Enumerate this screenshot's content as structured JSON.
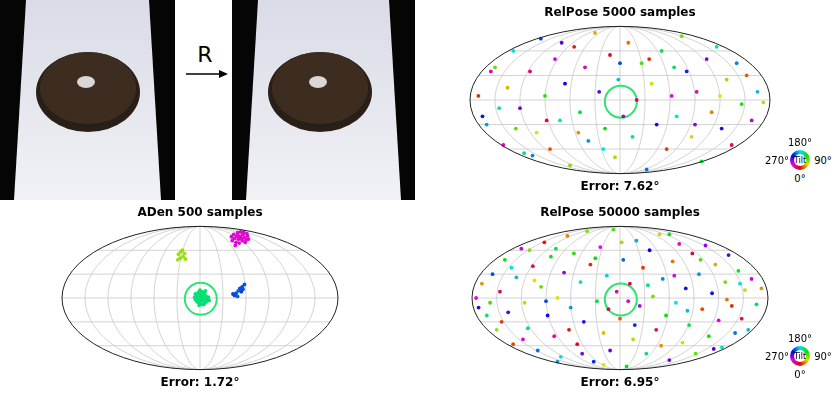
{
  "photo": {
    "arrow_label": "R"
  },
  "chart_data": [
    {
      "type": "scatter",
      "title": "ADen 500 samples",
      "xlabel": "Error: 1.72°",
      "xlim": [
        -180,
        180
      ],
      "ylim": [
        -90,
        90
      ],
      "tick_labels": false,
      "grid": true,
      "ground_truth": {
        "x": 1,
        "y": -1
      },
      "points": [
        [
          -5,
          2,
          150
        ],
        [
          -3,
          5,
          152
        ],
        [
          0,
          6,
          148
        ],
        [
          2,
          8,
          155
        ],
        [
          4,
          7,
          150
        ],
        [
          6,
          4,
          146
        ],
        [
          8,
          2,
          152
        ],
        [
          10,
          -1,
          150
        ],
        [
          9,
          -4,
          148
        ],
        [
          6,
          -6,
          154
        ],
        [
          3,
          -8,
          150
        ],
        [
          0,
          -7,
          147
        ],
        [
          -3,
          -5,
          151
        ],
        [
          -6,
          -2,
          149
        ],
        [
          -4,
          0,
          153
        ],
        [
          -1,
          1,
          150
        ],
        [
          1,
          3,
          146
        ],
        [
          3,
          2,
          152
        ],
        [
          5,
          0,
          150
        ],
        [
          7,
          -2,
          148
        ],
        [
          4,
          -3,
          155
        ],
        [
          1,
          -4,
          150
        ],
        [
          -2,
          -2,
          147
        ],
        [
          0,
          0,
          151
        ],
        [
          2,
          -1,
          149
        ],
        [
          -1,
          -1,
          153
        ],
        [
          3,
          5,
          150
        ],
        [
          6,
          6,
          146
        ],
        [
          -2,
          7,
          152
        ],
        [
          11,
          1,
          150
        ],
        [
          12,
          -3,
          148
        ],
        [
          -7,
          1,
          154
        ],
        [
          -4,
          -4,
          150
        ],
        [
          2,
          4,
          147
        ],
        [
          8,
          -5,
          151
        ],
        [
          5,
          -8,
          149
        ],
        [
          -1,
          -9,
          153
        ],
        [
          7,
          9,
          150
        ],
        [
          0,
          10,
          146
        ],
        [
          -6,
          5,
          152
        ],
        [
          42,
          72,
          302
        ],
        [
          45,
          75,
          305
        ],
        [
          48,
          78,
          300
        ],
        [
          50,
          74,
          308
        ],
        [
          53,
          77,
          303
        ],
        [
          56,
          80,
          306
        ],
        [
          58,
          76,
          301
        ],
        [
          60,
          73,
          304
        ],
        [
          62,
          78,
          307
        ],
        [
          44,
          80,
          302
        ],
        [
          47,
          70,
          305
        ],
        [
          51,
          69,
          300
        ],
        [
          55,
          72,
          308
        ],
        [
          59,
          70,
          303
        ],
        [
          63,
          74,
          306
        ],
        [
          49,
          82,
          301
        ],
        [
          53,
          83,
          304
        ],
        [
          57,
          83,
          307
        ],
        [
          46,
          66,
          302
        ],
        [
          41,
          77,
          305
        ],
        [
          61,
          81,
          300
        ],
        [
          54,
          75,
          308
        ],
        [
          50,
          78,
          303
        ],
        [
          -28,
          55,
          78
        ],
        [
          -25,
          58,
          82
        ],
        [
          -22,
          52,
          80
        ],
        [
          -20,
          56,
          76
        ],
        [
          -26,
          50,
          84
        ],
        [
          -19,
          49,
          79
        ],
        [
          -23,
          60,
          81
        ],
        [
          -29,
          48,
          77
        ],
        [
          58,
          17,
          218
        ],
        [
          55,
          14,
          222
        ],
        [
          52,
          12,
          220
        ],
        [
          50,
          9,
          216
        ],
        [
          54,
          8,
          224
        ],
        [
          47,
          6,
          219
        ],
        [
          45,
          3,
          221
        ],
        [
          49,
          2,
          217
        ],
        [
          43,
          5,
          223
        ],
        [
          56,
          11,
          220
        ]
      ]
    },
    {
      "type": "scatter",
      "title": "RelPose 5000 samples",
      "xlabel": "Error: 7.62°",
      "xlim": [
        -180,
        180
      ],
      "ylim": [
        -90,
        90
      ],
      "tick_labels": false,
      "grid": true,
      "ground_truth": {
        "x": 1,
        "y": -2
      },
      "colorbar": {
        "label": "Tilt",
        "ticks": [
          {
            "value": 0,
            "label": "0°"
          },
          {
            "value": 90,
            "label": "90°"
          },
          {
            "value": 180,
            "label": "180°"
          },
          {
            "value": 270,
            "label": "270°"
          }
        ]
      },
      "points": [
        [
          -170,
          5,
          12
        ],
        [
          -160,
          -30,
          200
        ],
        [
          -150,
          40,
          95
        ],
        [
          -140,
          -55,
          310
        ],
        [
          -135,
          15,
          48
        ],
        [
          -128,
          60,
          180
        ],
        [
          -120,
          -10,
          270
        ],
        [
          -115,
          -65,
          150
        ],
        [
          -108,
          35,
          330
        ],
        [
          -100,
          -40,
          60
        ],
        [
          -95,
          75,
          225
        ],
        [
          -90,
          5,
          110
        ],
        [
          -84,
          -60,
          20
        ],
        [
          -78,
          50,
          290
        ],
        [
          -72,
          -25,
          170
        ],
        [
          -66,
          20,
          240
        ],
        [
          -60,
          -80,
          85
        ],
        [
          -55,
          65,
          5
        ],
        [
          -48,
          -15,
          135
        ],
        [
          -42,
          40,
          315
        ],
        [
          -38,
          -50,
          200
        ],
        [
          -30,
          82,
          45
        ],
        [
          -25,
          10,
          260
        ],
        [
          -18,
          -35,
          120
        ],
        [
          -12,
          55,
          350
        ],
        [
          -6,
          -70,
          75
        ],
        [
          -2,
          25,
          190
        ],
        [
          4,
          -20,
          280
        ],
        [
          10,
          70,
          30
        ],
        [
          15,
          -45,
          155
        ],
        [
          20,
          0,
          335
        ],
        [
          26,
          45,
          100
        ],
        [
          32,
          -85,
          210
        ],
        [
          38,
          20,
          65
        ],
        [
          44,
          -30,
          245
        ],
        [
          50,
          60,
          140
        ],
        [
          56,
          -60,
          15
        ],
        [
          62,
          5,
          300
        ],
        [
          68,
          -20,
          175
        ],
        [
          74,
          78,
          90
        ],
        [
          80,
          35,
          230
        ],
        [
          86,
          -45,
          55
        ],
        [
          92,
          10,
          320
        ],
        [
          98,
          -75,
          130
        ],
        [
          104,
          50,
          270
        ],
        [
          110,
          -15,
          35
        ],
        [
          116,
          65,
          160
        ],
        [
          122,
          -35,
          250
        ],
        [
          128,
          25,
          80
        ],
        [
          134,
          -55,
          340
        ],
        [
          140,
          45,
          205
        ],
        [
          146,
          -5,
          115
        ],
        [
          152,
          30,
          25
        ],
        [
          158,
          -25,
          285
        ],
        [
          165,
          10,
          190
        ],
        [
          172,
          -3,
          70
        ],
        [
          -165,
          -20,
          235
        ],
        [
          -145,
          -10,
          165
        ],
        [
          -125,
          -35,
          95
        ],
        [
          -88,
          -25,
          345
        ],
        [
          -70,
          70,
          260
        ],
        [
          -50,
          -40,
          40
        ],
        [
          -20,
          -60,
          180
        ],
        [
          0,
          45,
          220
        ],
        [
          35,
          50,
          10
        ],
        [
          65,
          40,
          145
        ],
        [
          90,
          -30,
          275
        ],
        [
          120,
          5,
          60
        ],
        [
          -105,
          -68,
          205
        ],
        [
          -155,
          35,
          315
        ]
      ]
    },
    {
      "type": "scatter",
      "title": "RelPose 50000 samples",
      "xlabel": "Error: 6.95°",
      "xlim": [
        -180,
        180
      ],
      "ylim": [
        -90,
        90
      ],
      "tick_labels": false,
      "grid": true,
      "ground_truth": {
        "x": 1,
        "y": -2
      },
      "colorbar": {
        "label": "Tilt",
        "ticks": [
          {
            "value": 0,
            "label": "0°"
          },
          {
            "value": 90,
            "label": "90°"
          },
          {
            "value": 180,
            "label": "180°"
          },
          {
            "value": 270,
            "label": "270°"
          }
        ]
      },
      "points": [
        [
          -175,
          0,
          300
        ],
        [
          -168,
          18,
          40
        ],
        [
          -162,
          -22,
          160
        ],
        [
          -155,
          30,
          220
        ],
        [
          -150,
          -40,
          80
        ],
        [
          -146,
          8,
          340
        ],
        [
          -140,
          48,
          120
        ],
        [
          -136,
          -18,
          260
        ],
        [
          -130,
          -58,
          20
        ],
        [
          -126,
          26,
          190
        ],
        [
          -120,
          62,
          290
        ],
        [
          -116,
          -6,
          70
        ],
        [
          -112,
          -38,
          150
        ],
        [
          -106,
          40,
          330
        ],
        [
          -100,
          -66,
          210
        ],
        [
          -96,
          14,
          95
        ],
        [
          -92,
          70,
          5
        ],
        [
          -88,
          -22,
          245
        ],
        [
          -84,
          52,
          130
        ],
        [
          -80,
          -48,
          315
        ],
        [
          -76,
          0,
          60
        ],
        [
          -72,
          -74,
          175
        ],
        [
          -68,
          32,
          280
        ],
        [
          -64,
          78,
          35
        ],
        [
          -60,
          -12,
          200
        ],
        [
          -56,
          56,
          110
        ],
        [
          -52,
          -58,
          350
        ],
        [
          -48,
          20,
          165
        ],
        [
          -44,
          -30,
          255
        ],
        [
          -40,
          84,
          85
        ],
        [
          -36,
          42,
          10
        ],
        [
          -32,
          -80,
          230
        ],
        [
          -28,
          -4,
          140
        ],
        [
          -24,
          64,
          300
        ],
        [
          -20,
          -44,
          50
        ],
        [
          -16,
          28,
          185
        ],
        [
          -12,
          -66,
          270
        ],
        [
          -8,
          86,
          100
        ],
        [
          -4,
          8,
          320
        ],
        [
          0,
          -26,
          25
        ],
        [
          4,
          48,
          215
        ],
        [
          8,
          -86,
          125
        ],
        [
          12,
          18,
          345
        ],
        [
          16,
          -52,
          75
        ],
        [
          20,
          72,
          195
        ],
        [
          24,
          -10,
          285
        ],
        [
          28,
          38,
          15
        ],
        [
          32,
          -70,
          160
        ],
        [
          36,
          60,
          240
        ],
        [
          40,
          2,
          90
        ],
        [
          44,
          -40,
          330
        ],
        [
          48,
          80,
          55
        ],
        [
          52,
          24,
          205
        ],
        [
          56,
          -22,
          120
        ],
        [
          60,
          -78,
          270
        ],
        [
          64,
          46,
          30
        ],
        [
          68,
          -6,
          180
        ],
        [
          72,
          68,
          310
        ],
        [
          76,
          -56,
          65
        ],
        [
          80,
          12,
          250
        ],
        [
          84,
          -34,
          140
        ],
        [
          88,
          56,
          350
        ],
        [
          92,
          -70,
          95
        ],
        [
          96,
          30,
          200
        ],
        [
          100,
          -14,
          20
        ],
        [
          104,
          66,
          280
        ],
        [
          108,
          -48,
          115
        ],
        [
          112,
          6,
          235
        ],
        [
          116,
          42,
          45
        ],
        [
          120,
          -28,
          305
        ],
        [
          124,
          -62,
          170
        ],
        [
          128,
          20,
          90
        ],
        [
          132,
          54,
          260
        ],
        [
          136,
          -10,
          10
        ],
        [
          140,
          -44,
          210
        ],
        [
          144,
          34,
          130
        ],
        [
          148,
          -26,
          330
        ],
        [
          152,
          10,
          70
        ],
        [
          156,
          -40,
          190
        ],
        [
          160,
          24,
          290
        ],
        [
          166,
          -8,
          145
        ],
        [
          172,
          12,
          40
        ],
        [
          -172,
          -12,
          250
        ],
        [
          -158,
          -6,
          105
        ],
        [
          -144,
          -30,
          15
        ],
        [
          -132,
          38,
          175
        ],
        [
          -118,
          -52,
          300
        ],
        [
          -104,
          22,
          60
        ],
        [
          -90,
          -4,
          220
        ],
        [
          -78,
          62,
          140
        ],
        [
          -62,
          -40,
          5
        ],
        [
          -46,
          -70,
          270
        ],
        [
          -30,
          50,
          120
        ],
        [
          -14,
          -14,
          335
        ],
        [
          2,
          70,
          80
        ],
        [
          18,
          -34,
          230
        ],
        [
          34,
          16,
          160
        ],
        [
          50,
          -60,
          40
        ],
        [
          66,
          28,
          295
        ],
        [
          82,
          -16,
          190
        ],
        [
          98,
          48,
          100
        ],
        [
          114,
          -64,
          255
        ],
        [
          130,
          -2,
          30
        ],
        [
          146,
          18,
          180
        ],
        [
          -110,
          60,
          85
        ],
        [
          -76,
          -80,
          200
        ],
        [
          60,
          80,
          130
        ],
        [
          -20,
          -84,
          60
        ],
        [
          10,
          -4,
          310
        ]
      ]
    }
  ]
}
